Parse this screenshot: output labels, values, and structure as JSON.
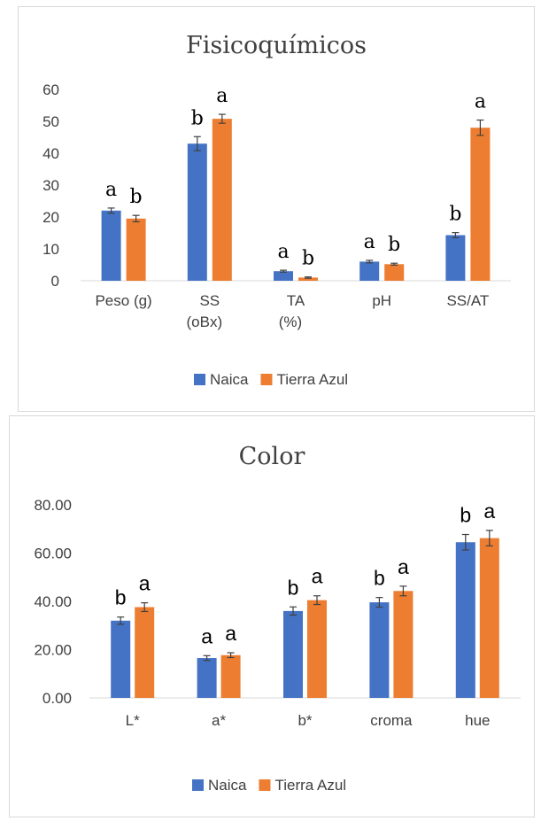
{
  "chart_data": [
    {
      "type": "bar",
      "title": "Fisicoquímicos",
      "categories": [
        "Peso (g)",
        "SS (oBx)",
        "TA (%)",
        "pH",
        "SS/AT"
      ],
      "category_lines": [
        [
          "Peso (g)"
        ],
        [
          "SS",
          "(oBx)"
        ],
        [
          "TA",
          "(%)"
        ],
        [
          "pH"
        ],
        [
          "SS/AT"
        ]
      ],
      "series": [
        {
          "name": "Naica",
          "color": "#4472c4",
          "values": [
            22,
            43,
            3,
            6,
            14.3
          ],
          "errors": [
            0.8,
            2.2,
            0.3,
            0.4,
            0.8
          ],
          "letters": [
            "a",
            "b",
            "a",
            "a",
            "b"
          ]
        },
        {
          "name": "Tierra Azul",
          "color": "#ed7d31",
          "values": [
            19.5,
            50.8,
            1,
            5.2,
            48
          ],
          "errors": [
            1,
            1.4,
            0.2,
            0.3,
            2.4
          ],
          "letters": [
            "b",
            "a",
            "b",
            "b",
            "a"
          ]
        }
      ],
      "ylim": [
        0,
        60
      ],
      "yticks": [
        "0",
        "10",
        "20",
        "30",
        "40",
        "50",
        "60"
      ],
      "grid": false,
      "legend": "bottom"
    },
    {
      "type": "bar",
      "title": "Color",
      "categories": [
        "L*",
        "a*",
        "b*",
        "croma",
        "hue"
      ],
      "category_lines": [
        [
          "L*"
        ],
        [
          "a*"
        ],
        [
          "b*"
        ],
        [
          "croma"
        ],
        [
          "hue"
        ]
      ],
      "series": [
        {
          "name": "Naica",
          "color": "#4472c4",
          "values": [
            32,
            16.5,
            36,
            39.6,
            64.5
          ],
          "errors": [
            1.5,
            1,
            1.7,
            2,
            3.2
          ],
          "letters": [
            "b",
            "a",
            "b",
            "b",
            "b"
          ]
        },
        {
          "name": "Tierra Azul",
          "color": "#ed7d31",
          "values": [
            37.6,
            17.7,
            40.5,
            44.3,
            66.2
          ],
          "errors": [
            1.8,
            1,
            1.8,
            2,
            3.2
          ],
          "letters": [
            "a",
            "a",
            "a",
            "a",
            "a"
          ]
        }
      ],
      "ylim": [
        0,
        80
      ],
      "yticks": [
        "0.00",
        "20.00",
        "40.00",
        "60.00",
        "80.00"
      ],
      "grid": false,
      "legend": "bottom"
    }
  ]
}
